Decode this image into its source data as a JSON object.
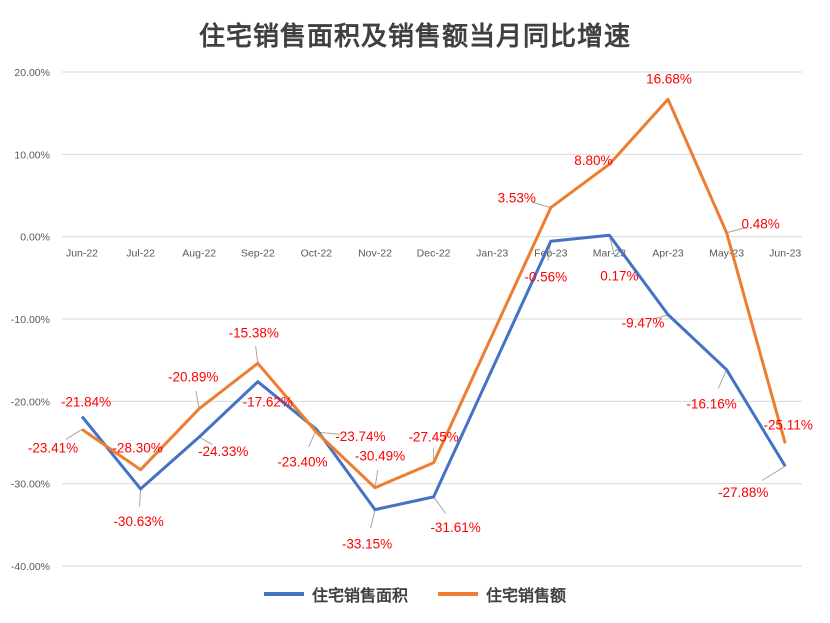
{
  "chart_data": {
    "type": "line",
    "title": "住宅销售面积及销售额当月同比增速",
    "categories": [
      "Jun-22",
      "Jul-22",
      "Aug-22",
      "Sep-22",
      "Oct-22",
      "Nov-22",
      "Dec-22",
      "Jan-23",
      "Feb-23",
      "Mar-23",
      "Apr-23",
      "May-23",
      "Jun-23"
    ],
    "ylim": [
      -40,
      20
    ],
    "yticks": [
      20,
      10,
      0,
      -10,
      -20,
      -30,
      -40
    ],
    "ytick_labels": [
      "20.00%",
      "10.00%",
      "0.00%",
      "-10.00%",
      "-20.00%",
      "-30.00%",
      "-40.00%"
    ],
    "grid": true,
    "legend": "bottom",
    "series": [
      {
        "name": "住宅销售面积",
        "color": "#4472c4",
        "values": [
          -21.84,
          -30.63,
          -24.33,
          -17.62,
          -23.4,
          -33.15,
          -31.61,
          null,
          -0.56,
          0.17,
          -9.47,
          -16.16,
          -27.88
        ],
        "labels": [
          "-21.84%",
          "-30.63%",
          "-24.33%",
          "-17.62%",
          "-23.40%",
          "-33.15%",
          "-31.61%",
          "",
          "-0.56%",
          "0.17%",
          "-9.47%",
          "-16.16%",
          "-27.88%"
        ]
      },
      {
        "name": "住宅销售额",
        "color": "#ed7d31",
        "values": [
          -23.41,
          -28.3,
          -20.89,
          -15.38,
          -23.74,
          -30.49,
          -27.45,
          null,
          3.53,
          8.8,
          16.68,
          0.48,
          -25.11
        ],
        "labels": [
          "-23.41%",
          "-28.30%",
          "-20.89%",
          "-15.38%",
          "-23.74%",
          "-30.49%",
          "-27.45%",
          "",
          "3.53%",
          "8.80%",
          "16.68%",
          "0.48%",
          "-25.11%"
        ]
      }
    ],
    "label_color": "#ff0000"
  }
}
